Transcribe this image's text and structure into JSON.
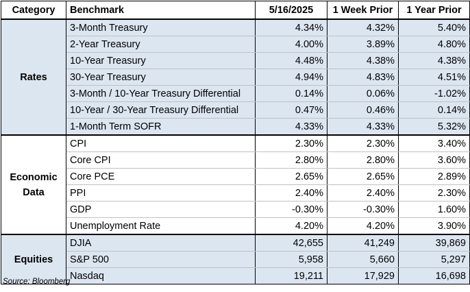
{
  "header": {
    "category": "Category",
    "benchmark": "Benchmark",
    "col1": "5/16/2025",
    "col2": "1 Week Prior",
    "col3": "1 Year Prior"
  },
  "groups": [
    {
      "category_lines": [
        "Rates"
      ],
      "rows": [
        {
          "benchmark": "3-Month Treasury",
          "v1": "4.34%",
          "v2": "4.32%",
          "v3": "5.40%"
        },
        {
          "benchmark": "2-Year Treasury",
          "v1": "4.00%",
          "v2": "3.89%",
          "v3": "4.80%"
        },
        {
          "benchmark": "10-Year Treasury",
          "v1": "4.48%",
          "v2": "4.38%",
          "v3": "4.38%"
        },
        {
          "benchmark": "30-Year Treasury",
          "v1": "4.94%",
          "v2": "4.83%",
          "v3": "4.51%"
        },
        {
          "benchmark": "3-Month / 10-Year Treasury Differential",
          "v1": "0.14%",
          "v2": "0.06%",
          "v3": "-1.02%"
        },
        {
          "benchmark": "10-Year / 30-Year Treasury Differential",
          "v1": "0.47%",
          "v2": "0.46%",
          "v3": "0.14%"
        },
        {
          "benchmark": "1-Month Term SOFR",
          "v1": "4.33%",
          "v2": "4.33%",
          "v3": "5.32%"
        }
      ]
    },
    {
      "category_lines": [
        "Economic",
        "Data"
      ],
      "rows": [
        {
          "benchmark": "CPI",
          "v1": "2.30%",
          "v2": "2.30%",
          "v3": "3.40%"
        },
        {
          "benchmark": "Core CPI",
          "v1": "2.80%",
          "v2": "2.80%",
          "v3": "3.60%"
        },
        {
          "benchmark": "Core PCE",
          "v1": "2.65%",
          "v2": "2.65%",
          "v3": "2.89%"
        },
        {
          "benchmark": "PPI",
          "v1": "2.40%",
          "v2": "2.40%",
          "v3": "2.30%"
        },
        {
          "benchmark": "GDP",
          "v1": "-0.30%",
          "v2": "-0.30%",
          "v3": "1.60%"
        },
        {
          "benchmark": "Unemployment Rate",
          "v1": "4.20%",
          "v2": "4.20%",
          "v3": "3.90%"
        }
      ]
    },
    {
      "category_lines": [
        "Equities"
      ],
      "rows": [
        {
          "benchmark": "DJIA",
          "v1": "42,655",
          "v2": "41,249",
          "v3": "39,869"
        },
        {
          "benchmark": "S&P 500",
          "v1": "5,958",
          "v2": "5,660",
          "v3": "5,297"
        },
        {
          "benchmark": "Nasdaq",
          "v1": "19,211",
          "v2": "17,929",
          "v3": "16,698"
        }
      ]
    }
  ],
  "source": "Source: Bloomberg",
  "colors": {
    "shaded_band": "#dce6f1",
    "plain_band": "#ffffff",
    "border": "#000000"
  }
}
